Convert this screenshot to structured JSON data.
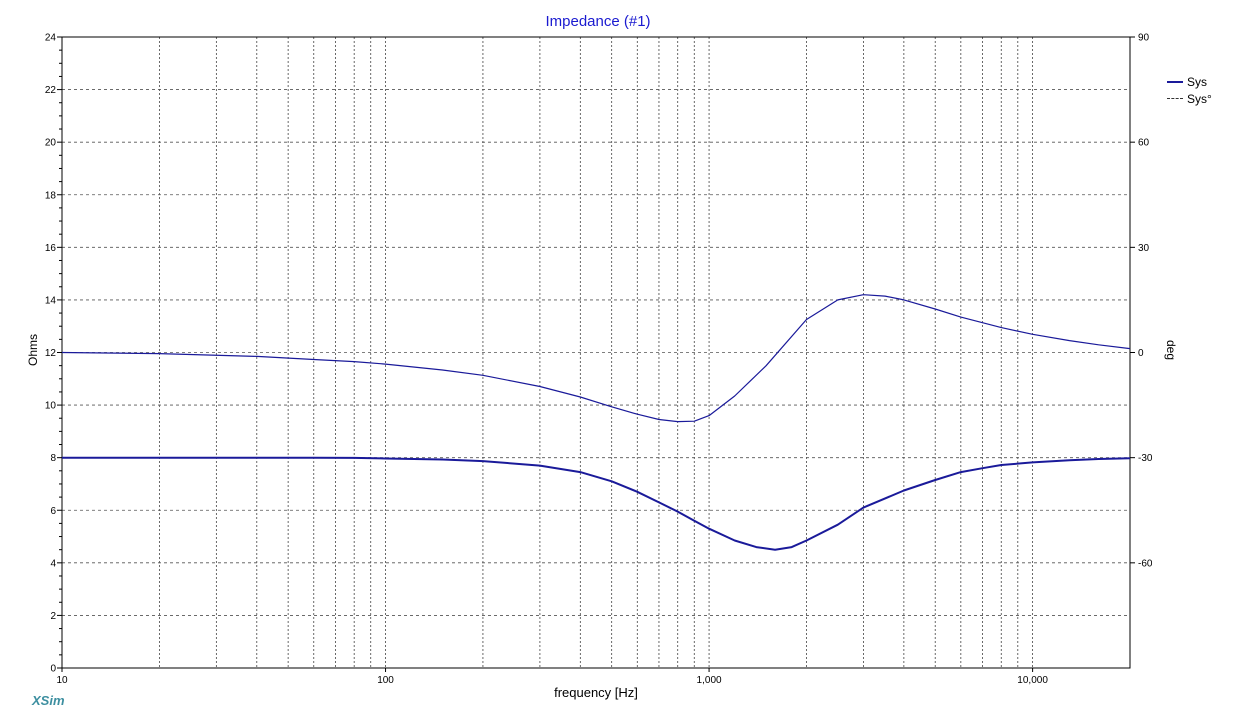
{
  "chart_data": {
    "type": "line",
    "title": "Impedance (#1)",
    "xlabel": "frequency [Hz]",
    "ylabel": "Ohms",
    "y2label": "deg",
    "x_scale": "log",
    "xlim": [
      10,
      20000
    ],
    "ylim": [
      0,
      24
    ],
    "y2lim": [
      -90,
      90
    ],
    "grid": true,
    "legend_position": "top-right",
    "x_tick_labels": [
      "10",
      "100",
      "1,000",
      "10,000"
    ],
    "x_tick_values": [
      10,
      100,
      1000,
      10000
    ],
    "y_ticks": [
      0,
      2,
      4,
      6,
      8,
      10,
      12,
      14,
      16,
      18,
      20,
      22,
      24
    ],
    "y2_ticks": [
      90,
      60,
      30,
      0,
      -30,
      -60
    ],
    "series": [
      {
        "name": "Sys",
        "axis": "left",
        "style": "solid",
        "color": "#1a1a9a",
        "x": [
          10,
          20,
          40,
          60,
          80,
          100,
          150,
          200,
          300,
          400,
          500,
          600,
          700,
          800,
          900,
          1000,
          1200,
          1400,
          1600,
          1800,
          2000,
          2500,
          3000,
          4000,
          5000,
          6000,
          7000,
          8000,
          10000,
          13000,
          16000,
          20000
        ],
        "y": [
          8.0,
          8.0,
          8.0,
          8.0,
          7.99,
          7.97,
          7.93,
          7.87,
          7.7,
          7.45,
          7.1,
          6.7,
          6.3,
          5.95,
          5.6,
          5.3,
          4.85,
          4.6,
          4.5,
          4.6,
          4.85,
          5.45,
          6.1,
          6.75,
          7.15,
          7.45,
          7.6,
          7.72,
          7.82,
          7.9,
          7.95,
          7.98
        ]
      },
      {
        "name": "Sys°",
        "axis": "right",
        "style": "dashed",
        "color": "#1a1a9a",
        "x": [
          10,
          20,
          40,
          60,
          80,
          100,
          150,
          200,
          300,
          400,
          500,
          600,
          700,
          800,
          900,
          1000,
          1200,
          1500,
          2000,
          2500,
          3000,
          3500,
          4000,
          5000,
          6000,
          8000,
          10000,
          13000,
          16000,
          20000
        ],
        "y": [
          0,
          -0.3,
          -1.1,
          -2.0,
          -2.6,
          -3.3,
          -5.0,
          -6.5,
          -9.7,
          -12.7,
          -15.5,
          -17.6,
          -19.1,
          -19.7,
          -19.6,
          -18.0,
          -12.4,
          -3.8,
          9.4,
          15.0,
          16.5,
          16.1,
          15.0,
          12.4,
          10.1,
          7.1,
          5.2,
          3.4,
          2.2,
          1.1
        ]
      }
    ]
  },
  "brand": "XSim"
}
